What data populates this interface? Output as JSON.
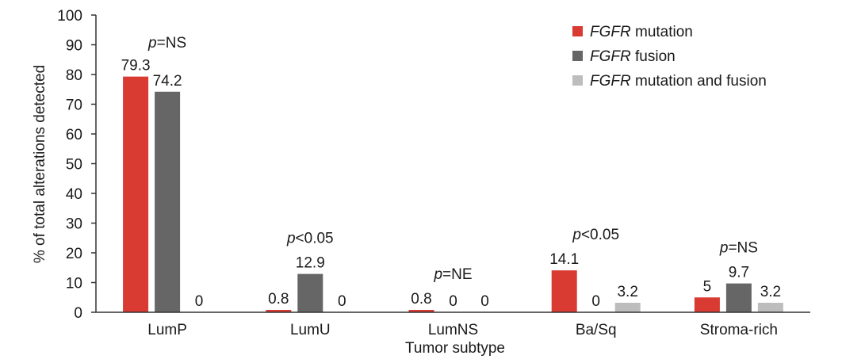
{
  "chart_data": {
    "type": "bar",
    "title": "",
    "xlabel": "Tumor subtype",
    "ylabel": "% of total alterations detected",
    "ylim": [
      0,
      100
    ],
    "yticks": [
      "0",
      "10",
      "20",
      "30",
      "40",
      "50",
      "60",
      "70",
      "80",
      "90",
      "100"
    ],
    "categories": [
      "LumP",
      "LumU",
      "LumNS",
      "Ba/Sq",
      "Stroma-rich"
    ],
    "p_values": [
      {
        "italic": "p",
        "rest": "=NS"
      },
      {
        "italic": "p",
        "rest": "<0.05"
      },
      {
        "italic": "p",
        "rest": "=NE"
      },
      {
        "italic": "p",
        "rest": "<0.05"
      },
      {
        "italic": "p",
        "rest": "=NS"
      }
    ],
    "series": [
      {
        "name": "FGFR mutation",
        "name_italic": "FGFR",
        "name_rest": " mutation",
        "color": "#d93a32",
        "values": [
          79.3,
          0.8,
          0.8,
          14.1,
          5
        ],
        "labels": [
          "79.3",
          "0.8",
          "0.8",
          "14.1",
          "5"
        ]
      },
      {
        "name": "FGFR fusion",
        "name_italic": "FGFR",
        "name_rest": " fusion",
        "color": "#666666",
        "values": [
          74.2,
          12.9,
          0,
          0,
          9.7
        ],
        "labels": [
          "74.2",
          "12.9",
          "0",
          "0",
          "9.7"
        ]
      },
      {
        "name": "FGFR mutation and fusion",
        "name_italic": "FGFR",
        "name_rest": " mutation and fusion",
        "color": "#bdbdbd",
        "values": [
          0,
          0,
          0,
          3.2,
          3.2
        ],
        "labels": [
          "0",
          "0",
          "0",
          "3.2",
          "3.2"
        ]
      }
    ],
    "legend_position": "top-right",
    "grid": false
  }
}
